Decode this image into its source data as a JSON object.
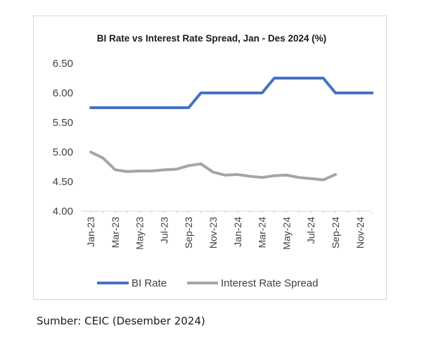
{
  "chart_data": {
    "type": "line",
    "title": "BI Rate vs Interest Rate Spread, Jan - Des 2024 (%)",
    "xlabel": "",
    "ylabel": "",
    "ylim": [
      4.0,
      6.5
    ],
    "yticks": [
      "6.50",
      "6.00",
      "5.50",
      "5.00",
      "4.50",
      "4.00"
    ],
    "categories": [
      "Jan-23",
      "Feb-23",
      "Mar-23",
      "Apr-23",
      "May-23",
      "Jun-23",
      "Jul-23",
      "Aug-23",
      "Sep-23",
      "Oct-23",
      "Nov-23",
      "Dec-23",
      "Jan-24",
      "Feb-24",
      "Mar-24",
      "Apr-24",
      "May-24",
      "Jun-24",
      "Jul-24",
      "Aug-24",
      "Sep-24",
      "Oct-24",
      "Nov-24",
      "Dec-24"
    ],
    "tick_labels": [
      "Jan-23",
      "Mar-23",
      "May-23",
      "Jul-23",
      "Sep-23",
      "Nov-23",
      "Jan-24",
      "Mar-24",
      "May-24",
      "Jul-24",
      "Sep-24",
      "Nov-24"
    ],
    "series": [
      {
        "name": "BI Rate",
        "color": "#4472c4",
        "values": [
          5.75,
          5.75,
          5.75,
          5.75,
          5.75,
          5.75,
          5.75,
          5.75,
          5.75,
          6.0,
          6.0,
          6.0,
          6.0,
          6.0,
          6.0,
          6.25,
          6.25,
          6.25,
          6.25,
          6.25,
          6.0,
          6.0,
          6.0,
          6.0
        ]
      },
      {
        "name": "Interest Rate Spread",
        "color": "#a5a5a5",
        "values": [
          5.0,
          4.9,
          4.7,
          4.67,
          4.68,
          4.68,
          4.7,
          4.71,
          4.77,
          4.8,
          4.66,
          4.61,
          4.62,
          4.59,
          4.57,
          4.6,
          4.61,
          4.57,
          4.55,
          4.53,
          4.62,
          null,
          null,
          null
        ]
      }
    ],
    "legend_position": "bottom",
    "grid": false
  },
  "footer": {
    "source": "Sumber: CEIC (Desember 2024)"
  }
}
